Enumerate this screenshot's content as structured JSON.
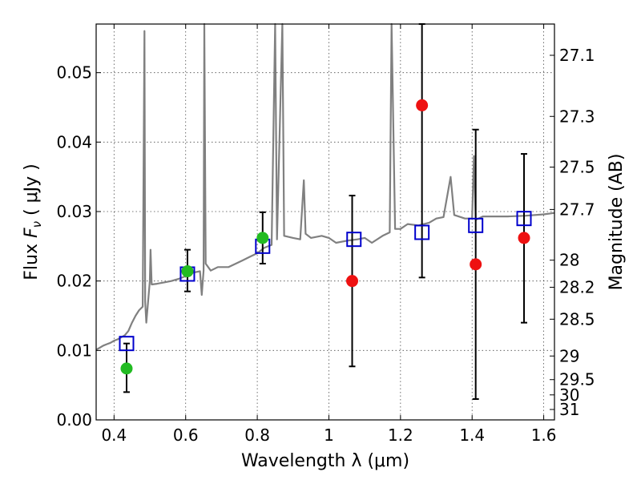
{
  "chart_data": {
    "type": "scatter",
    "xlabel": "Wavelength  λ (μm)",
    "ylabel_prefix": "Flux  ",
    "ylabel_symbol": "F",
    "ylabel_subscript": "ν",
    "ylabel_suffix": "  ( μJy )",
    "ylabel_right": "Magnitude (AB)",
    "xlim": [
      0.35,
      1.63
    ],
    "ylim": [
      0.0,
      0.057
    ],
    "grid": true,
    "x_ticks": [
      0.4,
      0.6,
      0.8,
      1.0,
      1.2,
      1.4,
      1.6
    ],
    "x_tick_labels": [
      "0.4",
      "0.6",
      "0.8",
      "1",
      "1.2",
      "1.4",
      "1.6"
    ],
    "y_ticks": [
      0.0,
      0.01,
      0.02,
      0.03,
      0.04,
      0.05
    ],
    "y_tick_labels": [
      "0.00",
      "0.01",
      "0.02",
      "0.03",
      "0.04",
      "0.05"
    ],
    "right_ticks": [
      {
        "label": "27.1",
        "flux": 0.0525
      },
      {
        "label": "27.3",
        "flux": 0.0437
      },
      {
        "label": "27.5",
        "flux": 0.0364
      },
      {
        "label": "27.7",
        "flux": 0.0303
      },
      {
        "label": "28",
        "flux": 0.023
      },
      {
        "label": "28.2",
        "flux": 0.0191
      },
      {
        "label": "28.5",
        "flux": 0.0145
      },
      {
        "label": "29",
        "flux": 0.0092
      },
      {
        "label": "29.5",
        "flux": 0.0058
      },
      {
        "label": "30",
        "flux": 0.0036
      },
      {
        "label": "31",
        "flux": 0.0015
      }
    ],
    "colors": {
      "sed": "#808080",
      "model": "#0000cc",
      "green": "#22bb22",
      "red": "#ee1111",
      "errorbar": "#000000"
    },
    "series": [
      {
        "kind": "line",
        "points": [
          [
            0.35,
            0.0101
          ],
          [
            0.36,
            0.0104
          ],
          [
            0.37,
            0.0107
          ],
          [
            0.38,
            0.0109
          ],
          [
            0.39,
            0.0111
          ],
          [
            0.4,
            0.0114
          ],
          [
            0.41,
            0.0116
          ],
          [
            0.42,
            0.0119
          ],
          [
            0.43,
            0.0122
          ],
          [
            0.44,
            0.0128
          ],
          [
            0.45,
            0.014
          ],
          [
            0.46,
            0.015
          ],
          [
            0.47,
            0.0158
          ],
          [
            0.48,
            0.0163
          ],
          [
            0.485,
            0.056
          ],
          [
            0.487,
            0.017
          ],
          [
            0.49,
            0.014
          ],
          [
            0.5,
            0.02
          ],
          [
            0.502,
            0.0245
          ],
          [
            0.505,
            0.0195
          ],
          [
            0.52,
            0.0196
          ],
          [
            0.54,
            0.0198
          ],
          [
            0.56,
            0.02
          ],
          [
            0.58,
            0.0203
          ],
          [
            0.6,
            0.0207
          ],
          [
            0.62,
            0.0212
          ],
          [
            0.64,
            0.0214
          ],
          [
            0.645,
            0.018
          ],
          [
            0.65,
            0.0215
          ],
          [
            0.652,
            0.057
          ],
          [
            0.656,
            0.0225
          ],
          [
            0.67,
            0.0215
          ],
          [
            0.69,
            0.022
          ],
          [
            0.72,
            0.022
          ],
          [
            0.74,
            0.0225
          ],
          [
            0.76,
            0.023
          ],
          [
            0.78,
            0.0235
          ],
          [
            0.8,
            0.024
          ],
          [
            0.82,
            0.0248
          ],
          [
            0.84,
            0.0252
          ],
          [
            0.85,
            0.057
          ],
          [
            0.855,
            0.026
          ],
          [
            0.87,
            0.057
          ],
          [
            0.875,
            0.0265
          ],
          [
            0.9,
            0.0262
          ],
          [
            0.92,
            0.026
          ],
          [
            0.93,
            0.0345
          ],
          [
            0.935,
            0.0268
          ],
          [
            0.95,
            0.0262
          ],
          [
            0.98,
            0.0265
          ],
          [
            1.0,
            0.0262
          ],
          [
            1.02,
            0.0255
          ],
          [
            1.05,
            0.0258
          ],
          [
            1.08,
            0.026
          ],
          [
            1.1,
            0.0262
          ],
          [
            1.12,
            0.0255
          ],
          [
            1.15,
            0.0265
          ],
          [
            1.17,
            0.027
          ],
          [
            1.175,
            0.057
          ],
          [
            1.185,
            0.0275
          ],
          [
            1.2,
            0.0275
          ],
          [
            1.22,
            0.0282
          ],
          [
            1.25,
            0.028
          ],
          [
            1.28,
            0.0284
          ],
          [
            1.3,
            0.029
          ],
          [
            1.32,
            0.0292
          ],
          [
            1.34,
            0.035
          ],
          [
            1.35,
            0.0295
          ],
          [
            1.38,
            0.029
          ],
          [
            1.4,
            0.029
          ],
          [
            1.405,
            0.038
          ],
          [
            1.41,
            0.0288
          ],
          [
            1.43,
            0.0293
          ],
          [
            1.45,
            0.0293
          ],
          [
            1.5,
            0.0293
          ],
          [
            1.55,
            0.0294
          ],
          [
            1.6,
            0.0296
          ],
          [
            1.63,
            0.0298
          ]
        ]
      },
      {
        "kind": "model-squares",
        "points": [
          [
            0.435,
            0.011
          ],
          [
            0.605,
            0.021
          ],
          [
            0.815,
            0.025
          ],
          [
            1.07,
            0.026
          ],
          [
            1.26,
            0.027
          ],
          [
            1.41,
            0.028
          ],
          [
            1.545,
            0.029
          ]
        ]
      },
      {
        "kind": "green-points",
        "points": [
          [
            0.435,
            0.0074
          ],
          [
            0.605,
            0.0214
          ],
          [
            0.815,
            0.0262
          ]
        ]
      },
      {
        "kind": "red-points",
        "points": [
          [
            1.065,
            0.02
          ],
          [
            1.26,
            0.0453
          ],
          [
            1.41,
            0.0224
          ],
          [
            1.545,
            0.0262
          ]
        ]
      },
      {
        "kind": "errorbars",
        "bars": [
          [
            0.435,
            0.004,
            0.011
          ],
          [
            0.605,
            0.0185,
            0.0245
          ],
          [
            0.815,
            0.0225,
            0.0299
          ],
          [
            1.065,
            0.0077,
            0.0323
          ],
          [
            1.26,
            0.0205,
            0.057
          ],
          [
            1.41,
            0.003,
            0.0418
          ],
          [
            1.545,
            0.014,
            0.0383
          ]
        ]
      }
    ]
  }
}
